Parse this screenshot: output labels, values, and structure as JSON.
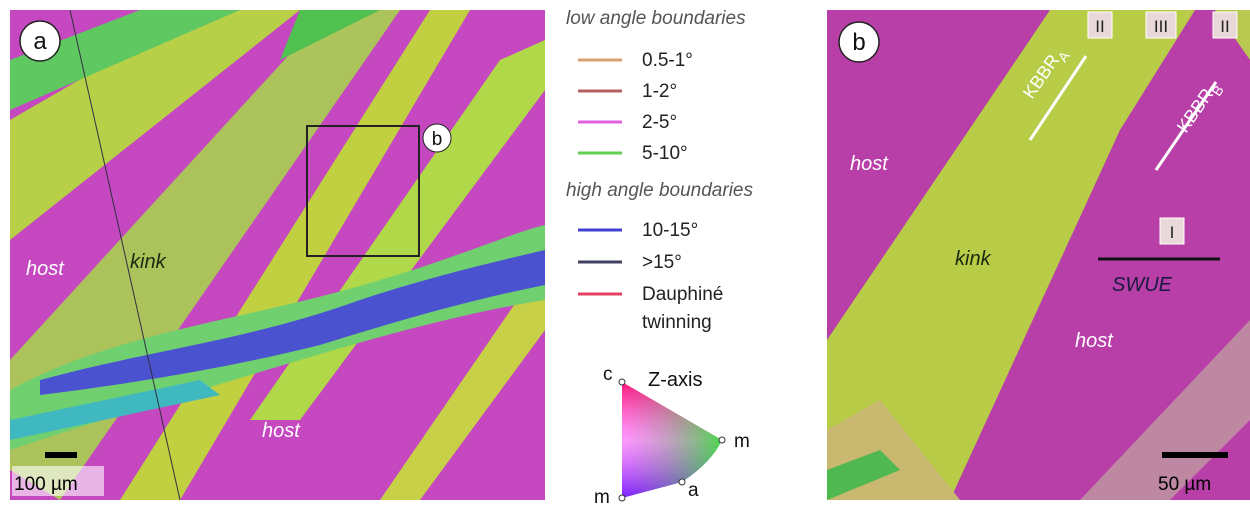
{
  "panel_a": {
    "label": "a",
    "annotations": [
      "host",
      "kink",
      "host"
    ],
    "inset_label": "b",
    "scale_bar": "100 µm"
  },
  "legend": {
    "low_angle_title": "low angle boundaries",
    "low_angle": [
      "0.5-1°",
      "1-2°",
      "2-5°",
      "5-10°"
    ],
    "high_angle_title": "high angle boundaries",
    "high_angle": [
      "10-15°",
      ">15°"
    ],
    "twinning": [
      "Dauphiné",
      "twinning"
    ]
  },
  "color_key": {
    "title": "Z-axis",
    "corners": [
      "c",
      "m",
      "m",
      "a"
    ]
  },
  "panel_b": {
    "label": "b",
    "domains": [
      "II",
      "III",
      "II",
      "I"
    ],
    "kbbr_a": {
      "text": "KBBR",
      "subscript": "A"
    },
    "kbbr_b": {
      "text": "KBBR",
      "subscript": "B"
    },
    "annotations": [
      "host",
      "kink",
      "host"
    ],
    "line_label": "SWUE",
    "scale_bar": "50 µm"
  }
}
